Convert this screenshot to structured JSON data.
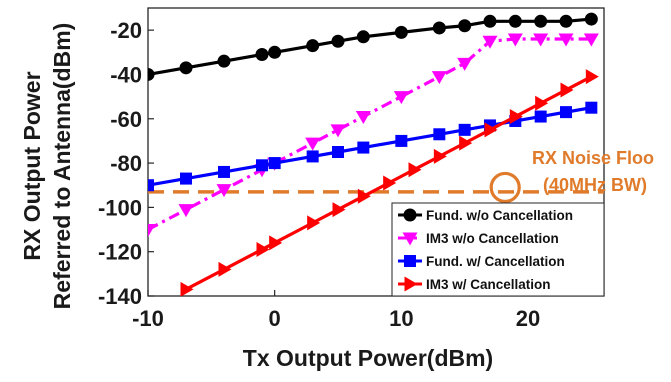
{
  "chart_data": {
    "type": "line",
    "title": "",
    "xlabel": "Tx Output Power(dBm)",
    "ylabel_lines": [
      "RX Output Power",
      "Referred to Antenna(dBm)"
    ],
    "xlim": [
      -10,
      26
    ],
    "ylim": [
      -140,
      -10
    ],
    "x_ticks": [
      -10,
      0,
      10,
      20
    ],
    "x_tick_labels": [
      "-10",
      "0",
      "10",
      "20"
    ],
    "y_ticks": [
      -140,
      -120,
      -100,
      -80,
      -60,
      -40,
      -20
    ],
    "y_tick_labels": [
      "-140",
      "-120",
      "-100",
      "-80",
      "-60",
      "-40",
      "-20"
    ],
    "grid": false,
    "legend_position": "bottom-right",
    "series": [
      {
        "name": "Fund. w/o Cancellation",
        "color": "#000000",
        "marker": "circle",
        "line_style": "solid",
        "x": [
          -10,
          -7,
          -4,
          -1,
          0,
          3,
          5,
          7,
          10,
          13,
          15,
          17,
          19,
          21,
          23,
          25
        ],
        "y": [
          -40,
          -37,
          -34,
          -31,
          -30,
          -27,
          -25,
          -23,
          -21,
          -19,
          -18,
          -16,
          -16,
          -16,
          -16,
          -15
        ]
      },
      {
        "name": "IM3 w/o Cancellation",
        "color": "#ff00ff",
        "marker": "triangle-down",
        "line_style": "dashdot",
        "x": [
          -10,
          -7,
          -4,
          -1,
          0,
          3,
          5,
          7,
          10,
          13,
          15,
          17,
          19,
          21,
          23,
          25
        ],
        "y": [
          -110,
          -101,
          -92,
          -83,
          -80,
          -71,
          -65,
          -59,
          -50,
          -41,
          -35,
          -25,
          -24,
          -24,
          -24,
          -24
        ]
      },
      {
        "name": "Fund. w/ Cancellation",
        "color": "#0000ff",
        "marker": "square",
        "line_style": "solid",
        "x": [
          -10,
          -7,
          -4,
          -1,
          0,
          3,
          5,
          7,
          10,
          13,
          15,
          17,
          19,
          21,
          23,
          25
        ],
        "y": [
          -90,
          -87,
          -84,
          -81,
          -80,
          -77,
          -75,
          -73,
          -70,
          -67,
          -65,
          -63,
          -61,
          -59,
          -57,
          -55
        ]
      },
      {
        "name": "IM3 w/ Cancellation",
        "color": "#ff0000",
        "marker": "triangle-right",
        "line_style": "solid",
        "x": [
          -7,
          -4,
          -1,
          0,
          3,
          5,
          7,
          9,
          11,
          13,
          15,
          17,
          19,
          21,
          23,
          25
        ],
        "y": [
          -137,
          -128,
          -119,
          -116,
          -107,
          -101,
          -95,
          -89,
          -83,
          -77,
          -71,
          -65,
          -59,
          -53,
          -47,
          -41
        ]
      }
    ],
    "reference_line": {
      "y": -93,
      "x_range": [
        -10,
        26
      ],
      "color": "#e07b2c",
      "line_style": "dashed"
    },
    "annotation": {
      "lines": [
        "RX Noise Floo",
        "(40MHz BW)"
      ],
      "color": "#e07b2c",
      "circle_at": {
        "x": 18.2,
        "y": -91
      }
    }
  }
}
